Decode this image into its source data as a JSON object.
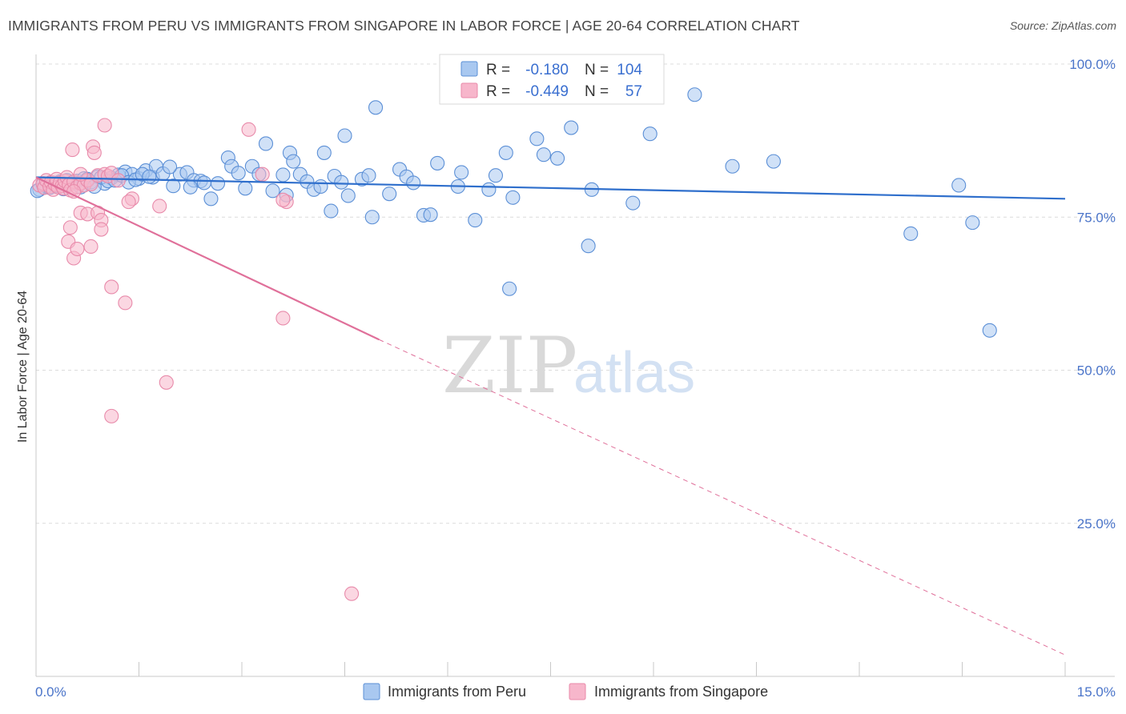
{
  "title": "IMMIGRANTS FROM PERU VS IMMIGRANTS FROM SINGAPORE IN LABOR FORCE | AGE 20-64 CORRELATION CHART",
  "source": "Source: ZipAtlas.com",
  "watermark": {
    "zip": "ZIP",
    "atlas": "atlas"
  },
  "colors": {
    "peru_fill": "#a9c8f0",
    "peru_stroke": "#5b8fd6",
    "peru_line": "#2f6fcc",
    "singapore_fill": "#f7b6cb",
    "singapore_stroke": "#e88aaa",
    "singapore_line": "#e0709a",
    "grid": "#dcdcdc",
    "axis_text": "#4a74c9"
  },
  "legend": {
    "rows": [
      {
        "r_label": "R =",
        "r_value": "-0.180",
        "n_label": "N =",
        "n_value": "104"
      },
      {
        "r_label": "R =",
        "r_value": "-0.449",
        "n_label": "N =",
        "n_value": "57"
      }
    ]
  },
  "chart_data": {
    "type": "scatter",
    "title": "IMMIGRANTS FROM PERU VS IMMIGRANTS FROM SINGAPORE IN LABOR FORCE | AGE 20-64 CORRELATION CHART",
    "xlabel": "",
    "ylabel": "In Labor Force | Age 20-64",
    "xlim": [
      0,
      15
    ],
    "ylim": [
      0,
      100
    ],
    "x_tick_labels": [
      "0.0%",
      "15.0%"
    ],
    "y_tick_labels": [
      "25.0%",
      "50.0%",
      "75.0%",
      "100.0%"
    ],
    "y_ticks": [
      25,
      50,
      75,
      100
    ],
    "grid": true,
    "legend_position": "top-center",
    "series": [
      {
        "name": "Immigrants from Peru",
        "r": -0.18,
        "n": 104,
        "trend": {
          "x": [
            0,
            15
          ],
          "y": [
            81.5,
            78.0
          ]
        },
        "points": [
          [
            0.05,
            79.5
          ],
          [
            0.1,
            80.3
          ],
          [
            0.15,
            80.0
          ],
          [
            0.2,
            79.8
          ],
          [
            0.25,
            80.6
          ],
          [
            0.3,
            80.1
          ],
          [
            0.35,
            80.8
          ],
          [
            0.4,
            79.6
          ],
          [
            0.45,
            81.0
          ],
          [
            0.5,
            80.4
          ],
          [
            0.6,
            80.9
          ],
          [
            0.7,
            81.3
          ],
          [
            0.8,
            80.7
          ],
          [
            0.9,
            81.6
          ],
          [
            1.0,
            80.5
          ],
          [
            1.1,
            81.4
          ],
          [
            1.2,
            81.9
          ],
          [
            1.3,
            82.4
          ],
          [
            1.4,
            82.0
          ],
          [
            1.5,
            81.3
          ],
          [
            1.6,
            82.6
          ],
          [
            1.7,
            81.5
          ],
          [
            1.75,
            83.3
          ],
          [
            1.85,
            82.1
          ],
          [
            2.0,
            80.1
          ],
          [
            2.1,
            82.0
          ],
          [
            2.2,
            82.3
          ],
          [
            2.3,
            81.0
          ],
          [
            2.4,
            80.9
          ],
          [
            2.55,
            78.0
          ],
          [
            2.8,
            84.7
          ],
          [
            2.85,
            83.3
          ],
          [
            2.95,
            82.2
          ],
          [
            3.05,
            79.7
          ],
          [
            3.15,
            83.3
          ],
          [
            3.25,
            82.0
          ],
          [
            3.35,
            87.0
          ],
          [
            3.45,
            79.3
          ],
          [
            3.6,
            81.9
          ],
          [
            3.65,
            78.6
          ],
          [
            3.7,
            85.5
          ],
          [
            3.75,
            84.1
          ],
          [
            3.85,
            82.0
          ],
          [
            3.95,
            80.8
          ],
          [
            4.05,
            79.5
          ],
          [
            4.15,
            80.0
          ],
          [
            4.2,
            85.5
          ],
          [
            4.3,
            76.0
          ],
          [
            4.35,
            81.7
          ],
          [
            4.45,
            80.7
          ],
          [
            4.5,
            88.3
          ],
          [
            4.55,
            78.5
          ],
          [
            4.75,
            81.2
          ],
          [
            4.85,
            81.8
          ],
          [
            4.9,
            75.0
          ],
          [
            4.95,
            92.9
          ],
          [
            5.15,
            78.8
          ],
          [
            5.3,
            82.8
          ],
          [
            5.4,
            81.6
          ],
          [
            5.5,
            80.6
          ],
          [
            5.65,
            75.3
          ],
          [
            5.75,
            75.4
          ],
          [
            5.85,
            83.8
          ],
          [
            6.15,
            80.0
          ],
          [
            6.2,
            82.3
          ],
          [
            6.4,
            74.5
          ],
          [
            6.6,
            79.5
          ],
          [
            6.7,
            81.8
          ],
          [
            6.85,
            85.5
          ],
          [
            6.9,
            63.3
          ],
          [
            6.95,
            78.2
          ],
          [
            7.3,
            87.8
          ],
          [
            7.4,
            85.2
          ],
          [
            7.6,
            84.6
          ],
          [
            7.8,
            89.6
          ],
          [
            8.05,
            70.3
          ],
          [
            8.1,
            79.5
          ],
          [
            8.7,
            77.3
          ],
          [
            8.95,
            88.6
          ],
          [
            9.6,
            95.0
          ],
          [
            10.15,
            83.3
          ],
          [
            10.75,
            84.1
          ],
          [
            12.75,
            72.3
          ],
          [
            13.45,
            80.2
          ],
          [
            13.65,
            74.1
          ],
          [
            13.9,
            56.5
          ],
          [
            0.45,
            80.2
          ],
          [
            0.55,
            80.6
          ],
          [
            0.65,
            79.9
          ],
          [
            0.75,
            81.2
          ],
          [
            0.85,
            80.0
          ],
          [
            0.95,
            81.5
          ],
          [
            1.05,
            80.9
          ],
          [
            1.15,
            81.0
          ],
          [
            1.25,
            81.8
          ],
          [
            1.35,
            80.7
          ],
          [
            1.45,
            81.1
          ],
          [
            1.55,
            82.0
          ],
          [
            1.65,
            81.6
          ],
          [
            1.95,
            83.2
          ],
          [
            2.25,
            79.9
          ],
          [
            2.45,
            80.6
          ],
          [
            2.65,
            80.5
          ],
          [
            0.02,
            79.3
          ]
        ]
      },
      {
        "name": "Immigrants from Singapore",
        "r": -0.449,
        "n": 57,
        "trend": {
          "x": [
            0,
            5.0
          ],
          "y": [
            81.5,
            55.0
          ]
        },
        "trend_dashed": {
          "x": [
            5.0,
            15
          ],
          "y": [
            55.0,
            3.5
          ]
        },
        "points": [
          [
            0.05,
            80.2
          ],
          [
            0.1,
            80.5
          ],
          [
            0.12,
            79.8
          ],
          [
            0.15,
            81.0
          ],
          [
            0.2,
            80.0
          ],
          [
            0.22,
            80.7
          ],
          [
            0.25,
            79.5
          ],
          [
            0.28,
            80.3
          ],
          [
            0.3,
            81.2
          ],
          [
            0.32,
            79.9
          ],
          [
            0.35,
            80.6
          ],
          [
            0.38,
            80.1
          ],
          [
            0.4,
            79.7
          ],
          [
            0.42,
            80.9
          ],
          [
            0.45,
            81.5
          ],
          [
            0.48,
            80.3
          ],
          [
            0.5,
            79.4
          ],
          [
            0.55,
            80.8
          ],
          [
            0.6,
            79.9
          ],
          [
            0.65,
            80.5
          ],
          [
            0.7,
            80.2
          ],
          [
            0.75,
            81.0
          ],
          [
            0.8,
            80.4
          ],
          [
            0.55,
            79.2
          ],
          [
            0.65,
            82.0
          ],
          [
            0.9,
            81.8
          ],
          [
            1.0,
            82.0
          ],
          [
            1.05,
            81.7
          ],
          [
            1.1,
            82.2
          ],
          [
            1.2,
            81.0
          ],
          [
            0.53,
            86.0
          ],
          [
            0.83,
            86.5
          ],
          [
            0.85,
            85.5
          ],
          [
            1.0,
            90.0
          ],
          [
            3.1,
            89.3
          ],
          [
            0.5,
            73.3
          ],
          [
            0.47,
            71.0
          ],
          [
            0.55,
            68.3
          ],
          [
            0.6,
            69.8
          ],
          [
            0.65,
            75.7
          ],
          [
            0.75,
            75.5
          ],
          [
            0.8,
            70.2
          ],
          [
            0.9,
            75.7
          ],
          [
            0.95,
            74.5
          ],
          [
            0.95,
            73.0
          ],
          [
            1.4,
            78.0
          ],
          [
            1.35,
            77.5
          ],
          [
            1.8,
            76.8
          ],
          [
            1.1,
            63.6
          ],
          [
            1.3,
            61.0
          ],
          [
            3.65,
            77.5
          ],
          [
            3.6,
            77.8
          ],
          [
            3.3,
            82.0
          ],
          [
            1.9,
            48.0
          ],
          [
            1.1,
            42.5
          ],
          [
            3.6,
            58.5
          ],
          [
            4.6,
            13.5
          ]
        ]
      }
    ]
  },
  "bottom_legend": {
    "items": [
      {
        "label": "Immigrants from Peru"
      },
      {
        "label": "Immigrants from Singapore"
      }
    ]
  }
}
